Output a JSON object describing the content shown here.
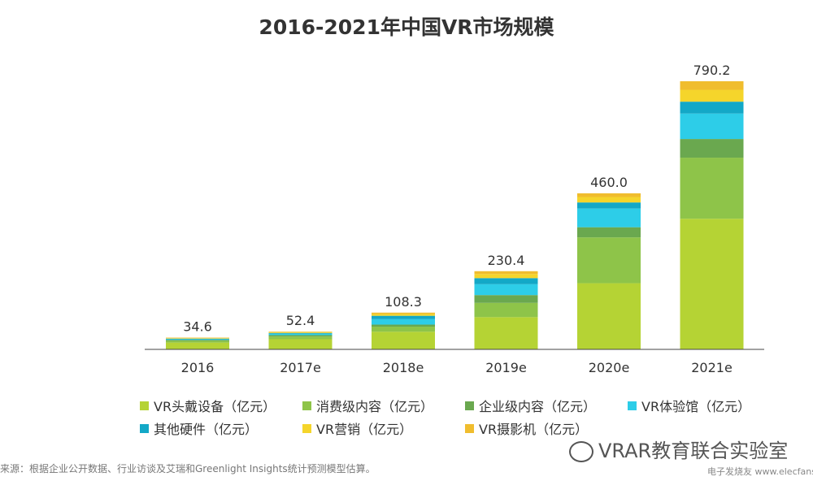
{
  "chart_data": {
    "type": "bar",
    "stacked": true,
    "title": "2016-2021年中国VR市场规模",
    "categories": [
      "2016",
      "2017e",
      "2018e",
      "2019e",
      "2020e",
      "2021e"
    ],
    "totals": [
      34.6,
      52.4,
      108.3,
      230.4,
      460.0,
      790.2
    ],
    "total_labels": [
      "34.6",
      "52.4",
      "108.3",
      "230.4",
      "460.0",
      "790.2"
    ],
    "series": [
      {
        "name": "VR头戴设备（亿元）",
        "color": "#b5d334",
        "values": [
          20,
          30,
          52,
          95,
          195,
          385
        ]
      },
      {
        "name": "消费级内容（亿元）",
        "color": "#8ec449",
        "values": [
          5,
          8,
          15,
          42,
          135,
          180
        ]
      },
      {
        "name": "企业级内容（亿元）",
        "color": "#6aa84f",
        "values": [
          3,
          4,
          6,
          23,
          30,
          55
        ]
      },
      {
        "name": "VR体验馆（亿元）",
        "color": "#2dcde8",
        "values": [
          2,
          4,
          16,
          32,
          55,
          75
        ]
      },
      {
        "name": "其他硬件（亿元）",
        "color": "#13a8c7",
        "values": [
          1.6,
          2.4,
          10,
          18,
          18,
          35
        ]
      },
      {
        "name": "VR营销（亿元）",
        "color": "#f5d52b",
        "values": [
          1.5,
          2.5,
          5,
          12,
          16,
          35
        ]
      },
      {
        "name": "VR摄影机（亿元）",
        "color": "#f0bd2e",
        "values": [
          1.5,
          1.5,
          4.3,
          8.4,
          11,
          25.2
        ]
      }
    ],
    "ylim": [
      0,
      810
    ],
    "grid": false,
    "legend_position": "bottom"
  },
  "footer": {
    "source": "来源：根据企业公开数据、行业访谈及艾瑞和Greenlight Insights统计预测模型估算。",
    "watermark": "VRAR教育联合实验室",
    "watermark_sub": "电子发烧友 www.elecfans.com"
  }
}
